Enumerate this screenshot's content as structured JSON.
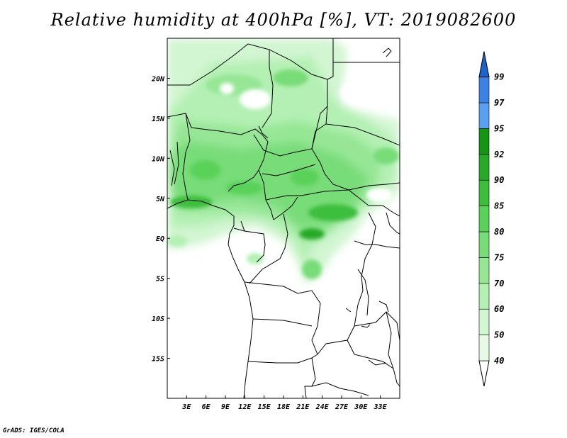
{
  "title": "Relative humidity at 400hPa [%], VT: 2019082600",
  "credit": "GrADS: IGES/COLA",
  "map": {
    "lon_range": [
      0,
      36
    ],
    "lat_range": [
      -20,
      25
    ],
    "lon_ticks": [
      {
        "value": 3,
        "label": "3E"
      },
      {
        "value": 6,
        "label": "6E"
      },
      {
        "value": 9,
        "label": "9E"
      },
      {
        "value": 12,
        "label": "12E"
      },
      {
        "value": 15,
        "label": "15E"
      },
      {
        "value": 18,
        "label": "18E"
      },
      {
        "value": 21,
        "label": "21E"
      },
      {
        "value": 24,
        "label": "24E"
      },
      {
        "value": 27,
        "label": "27E"
      },
      {
        "value": 30,
        "label": "30E"
      },
      {
        "value": 33,
        "label": "33E"
      }
    ],
    "lat_ticks": [
      {
        "value": 20,
        "label": "20N"
      },
      {
        "value": 15,
        "label": "15N"
      },
      {
        "value": 10,
        "label": "10N"
      },
      {
        "value": 5,
        "label": "5N"
      },
      {
        "value": 0,
        "label": "EQ"
      },
      {
        "value": -5,
        "label": "5S"
      },
      {
        "value": -10,
        "label": "10S"
      },
      {
        "value": -15,
        "label": "15S"
      }
    ]
  },
  "colorbar": {
    "levels": [
      {
        "label": "40",
        "color": "#e6fae6"
      },
      {
        "label": "50",
        "color": "#d2f5d2"
      },
      {
        "label": "60",
        "color": "#b4f0b4"
      },
      {
        "label": "70",
        "color": "#96e696"
      },
      {
        "label": "75",
        "color": "#78dc78"
      },
      {
        "label": "80",
        "color": "#5ad25a"
      },
      {
        "label": "85",
        "color": "#3cbe3c"
      },
      {
        "label": "90",
        "color": "#28aa28"
      },
      {
        "label": "92",
        "color": "#149614"
      },
      {
        "label": "95",
        "color": "#5aa0f0"
      },
      {
        "label": "97",
        "color": "#3c82e6"
      },
      {
        "label": "99",
        "color": "#1e64c8"
      }
    ],
    "top_color": "#1450b4"
  }
}
